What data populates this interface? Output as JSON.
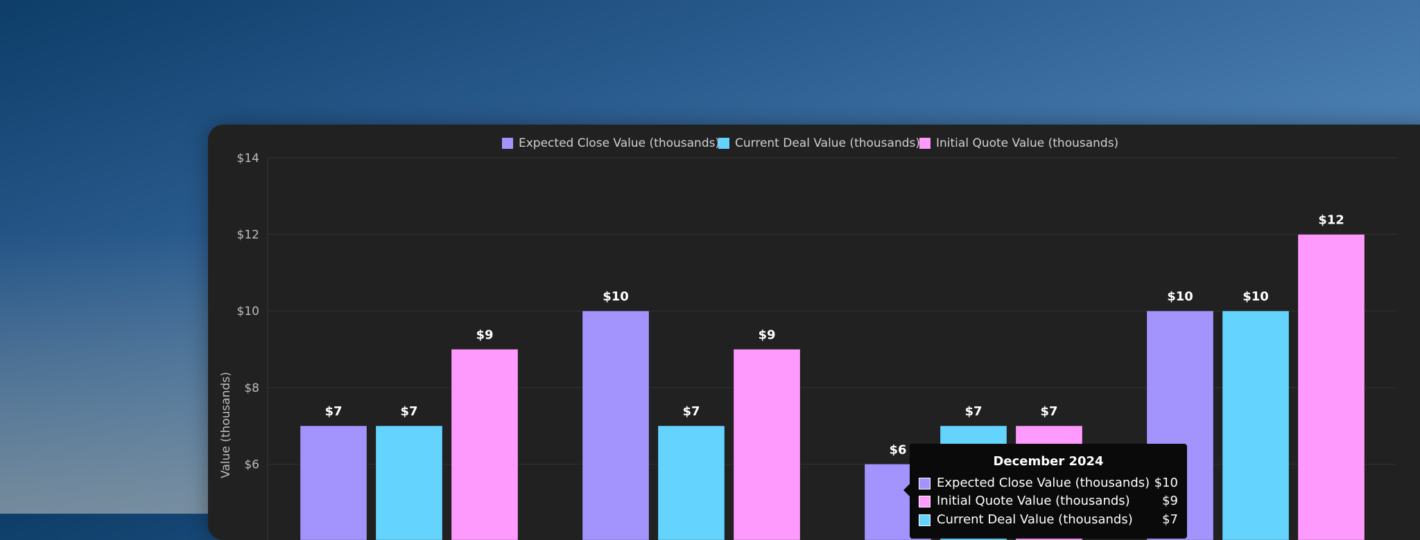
{
  "chart_data": {
    "type": "bar",
    "categories": [
      "",
      "",
      "",
      ""
    ],
    "series": [
      {
        "name": "Expected Close Value (thousands)",
        "color": "#a394fd",
        "values": [
          7,
          10,
          6,
          10
        ]
      },
      {
        "name": "Current Deal Value (thousands)",
        "color": "#64d3fd",
        "values": [
          7,
          7,
          7,
          10
        ]
      },
      {
        "name": "Initial Quote Value (thousands)",
        "color": "#fe99fd",
        "values": [
          9,
          9,
          7,
          12
        ]
      }
    ],
    "data_labels": [
      [
        "$7",
        "$10",
        "$6",
        "$10"
      ],
      [
        "$7",
        "$7",
        "$7",
        "$10"
      ],
      [
        "$9",
        "$9",
        "$7",
        "$12"
      ]
    ],
    "ylabel": "Value (thousands)",
    "y_ticks": [
      {
        "value": 14,
        "label": "$14"
      },
      {
        "value": 12,
        "label": "$12"
      },
      {
        "value": 10,
        "label": "$10"
      },
      {
        "value": 8,
        "label": "$8"
      },
      {
        "value": 6,
        "label": "$6"
      }
    ],
    "ylim": [
      0,
      14
    ],
    "grid": true,
    "legend_position": "top-center",
    "tooltip": {
      "title": "December 2024",
      "rows": [
        {
          "name": "Expected Close Value (thousands)",
          "value": "$10",
          "color": "#a394fd"
        },
        {
          "name": "Initial Quote Value (thousands)",
          "value": "$9",
          "color": "#fe99fd"
        },
        {
          "name": "Current Deal Value (thousands)",
          "value": "$7",
          "color": "#64d3fd"
        }
      ]
    }
  }
}
